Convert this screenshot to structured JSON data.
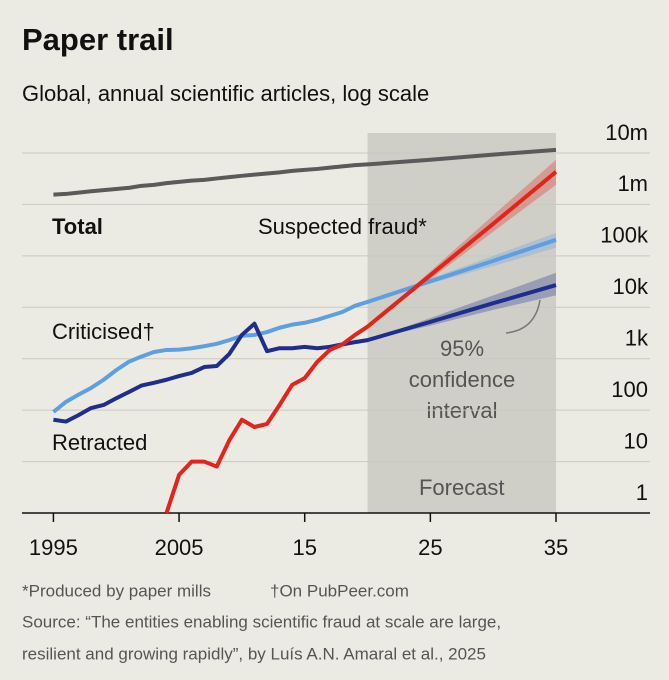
{
  "chart_data": {
    "type": "line",
    "title": "Paper trail",
    "subtitle": "Global, annual scientific articles, log scale",
    "log_scale": true,
    "grid": true,
    "x": [
      1995,
      1996,
      1997,
      1998,
      1999,
      2000,
      2001,
      2002,
      2003,
      2004,
      2005,
      2006,
      2007,
      2008,
      2009,
      2010,
      2011,
      2012,
      2013,
      2014,
      2015,
      2016,
      2017,
      2018,
      2019,
      2020,
      2025,
      2030,
      2035
    ],
    "xlim": [
      1992.5,
      2035
    ],
    "xticks": [
      1995,
      2005,
      {
        "value": 2015,
        "label": "15"
      },
      {
        "value": 2025,
        "label": "25"
      },
      {
        "value": 2035,
        "label": "35"
      }
    ],
    "ylim": [
      1,
      10000000
    ],
    "yticks": [
      1,
      10,
      100,
      {
        "value": 1000,
        "label": "1k"
      },
      {
        "value": 10000,
        "label": "10k"
      },
      {
        "value": 100000,
        "label": "100k"
      },
      {
        "value": 1000000,
        "label": "1m"
      },
      {
        "value": 10000000,
        "label": "10m"
      }
    ],
    "forecast": {
      "label": "Forecast",
      "start": 2020,
      "end": 2035
    },
    "ci_label": [
      "95%",
      "confidence",
      "interval"
    ],
    "series": [
      {
        "name": "Total",
        "color": "#5a5a5a",
        "values": [
          1550000,
          1600000,
          1700000,
          1800000,
          1900000,
          2000000,
          2100000,
          2300000,
          2400000,
          2600000,
          2750000,
          2900000,
          3000000,
          3200000,
          3400000,
          3600000,
          3800000,
          4000000,
          4200000,
          4500000,
          4700000,
          4900000,
          5200000,
          5500000,
          5800000,
          6000000,
          7400000,
          9300000,
          11500000
        ]
      },
      {
        "name": "Criticised†",
        "color": "#5d9fe0",
        "values": [
          92,
          145,
          200,
          270,
          390,
          600,
          870,
          1100,
          1350,
          1480,
          1500,
          1600,
          1750,
          1950,
          2300,
          2800,
          2900,
          3300,
          4000,
          4600,
          5000,
          5700,
          6800,
          8100,
          10700,
          12700,
          32000,
          80000,
          205000
        ],
        "ci_lower": [
          null,
          null,
          null,
          null,
          null,
          null,
          null,
          null,
          null,
          null,
          null,
          null,
          null,
          null,
          null,
          null,
          null,
          null,
          null,
          null,
          null,
          null,
          null,
          null,
          null,
          12700,
          29000,
          63000,
          144000
        ],
        "ci_upper": [
          null,
          null,
          null,
          null,
          null,
          null,
          null,
          null,
          null,
          null,
          null,
          null,
          null,
          null,
          null,
          null,
          null,
          null,
          null,
          null,
          null,
          null,
          null,
          null,
          null,
          12700,
          36000,
          100000,
          280000
        ]
      },
      {
        "name": "Retracted",
        "color": "#1f2d8c",
        "values": [
          65,
          60,
          80,
          110,
          126,
          170,
          225,
          300,
          340,
          390,
          460,
          530,
          690,
          720,
          1240,
          2900,
          4800,
          1400,
          1600,
          1600,
          1700,
          1600,
          1700,
          1900,
          2100,
          2300,
          5200,
          12000,
          27000
        ],
        "ci_lower": [
          null,
          null,
          null,
          null,
          null,
          null,
          null,
          null,
          null,
          null,
          null,
          null,
          null,
          null,
          null,
          null,
          null,
          null,
          null,
          null,
          null,
          null,
          null,
          null,
          null,
          2300,
          4400,
          8900,
          17000
        ],
        "ci_upper": [
          null,
          null,
          null,
          null,
          null,
          null,
          null,
          null,
          null,
          null,
          null,
          null,
          null,
          null,
          null,
          null,
          null,
          null,
          null,
          null,
          null,
          null,
          null,
          null,
          null,
          2300,
          6200,
          17000,
          47000
        ]
      },
      {
        "name": "Suspected fraud*",
        "color": "#e3241b",
        "values": [
          null,
          null,
          null,
          null,
          null,
          null,
          null,
          null,
          null,
          1,
          5.5,
          10,
          10,
          8,
          26,
          65,
          47,
          54,
          126,
          310,
          420,
          870,
          1480,
          1900,
          2900,
          4200,
          42000,
          420000,
          4300000
        ],
        "ci_lower": [
          null,
          null,
          null,
          null,
          null,
          null,
          null,
          null,
          null,
          null,
          null,
          null,
          null,
          null,
          null,
          null,
          null,
          null,
          null,
          null,
          null,
          null,
          null,
          null,
          null,
          4200,
          35000,
          295000,
          2400000
        ],
        "ci_upper": [
          null,
          null,
          null,
          null,
          null,
          null,
          null,
          null,
          null,
          null,
          null,
          null,
          null,
          null,
          null,
          null,
          null,
          null,
          null,
          null,
          null,
          null,
          null,
          null,
          null,
          4200,
          50000,
          617000,
          7400000
        ]
      }
    ],
    "footnotes": [
      "*Produced by paper mills",
      "†On PubPeer.com"
    ],
    "source": [
      "Source: “The entities enabling scientific fraud at scale are large,",
      "resilient and growing rapidly”, by Luís A.N. Amaral et al., 2025"
    ]
  }
}
